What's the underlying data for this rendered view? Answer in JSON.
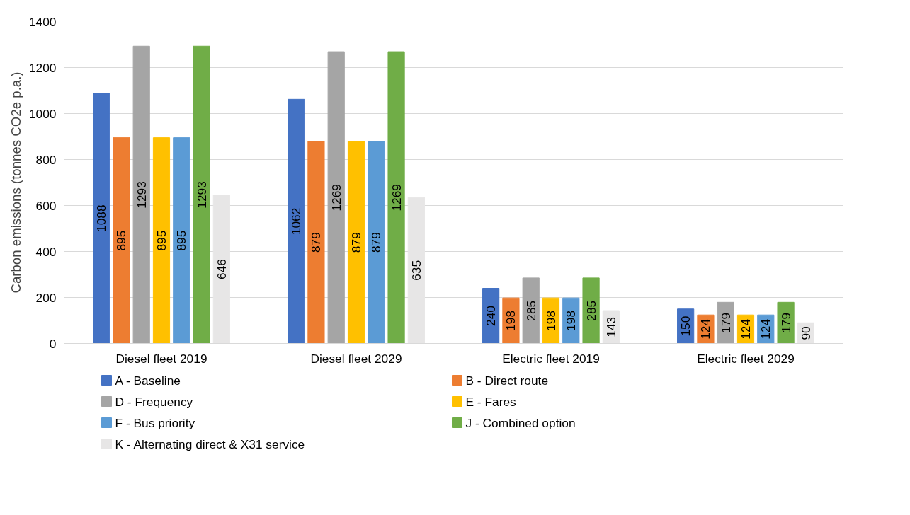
{
  "chart_data": {
    "type": "bar",
    "ylabel": "Carbon emissions (tonnes CO2e p.a.)",
    "categories": [
      "Diesel fleet 2019",
      "Diesel fleet 2029",
      "Electric fleet 2019",
      "Electric fleet 2029"
    ],
    "series": [
      {
        "name": "A - Baseline",
        "color": "#4472c4",
        "values": [
          1088,
          1062,
          240,
          150
        ]
      },
      {
        "name": "B - Direct route",
        "color": "#ed7d31",
        "values": [
          895,
          879,
          198,
          124
        ]
      },
      {
        "name": "D - Frequency",
        "color": "#a5a5a5",
        "values": [
          1293,
          1269,
          285,
          179
        ]
      },
      {
        "name": "E - Fares",
        "color": "#ffc000",
        "values": [
          895,
          879,
          198,
          124
        ]
      },
      {
        "name": "F - Bus priority",
        "color": "#5b9bd5",
        "values": [
          895,
          879,
          198,
          124
        ]
      },
      {
        "name": "J - Combined option",
        "color": "#70ad47",
        "values": [
          1293,
          1269,
          285,
          179
        ]
      },
      {
        "name": "K - Alternating direct & X31 service",
        "color": "#e7e6e6",
        "values": [
          646,
          635,
          143,
          90
        ]
      }
    ],
    "ylim": [
      0,
      1400
    ],
    "yticks": [
      0,
      200,
      400,
      600,
      800,
      1000,
      1200,
      1400
    ],
    "grid": "y",
    "legend": "bottom",
    "data_labels": true
  }
}
